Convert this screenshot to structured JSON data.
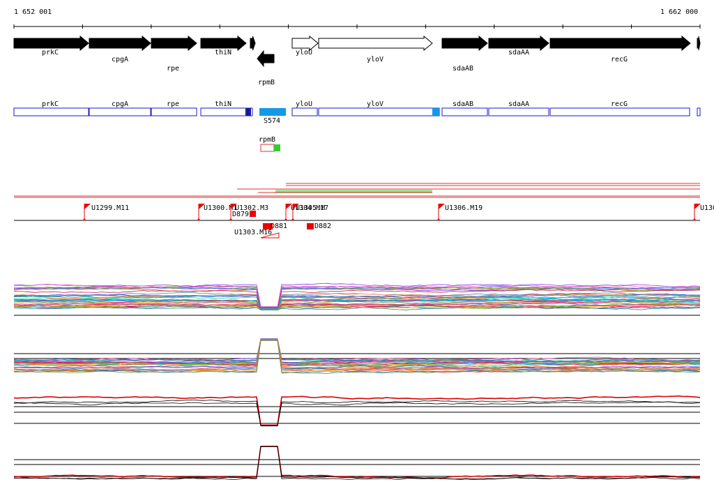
{
  "coords": {
    "start": "1 652 001",
    "end": "1 662 000"
  },
  "genes": [
    {
      "label": "prkC"
    },
    {
      "label": "cpgA"
    },
    {
      "label": "rpe"
    },
    {
      "label": "thiN"
    },
    {
      "label": ""
    },
    {
      "label": "rpmB"
    },
    {
      "label": "yloU"
    },
    {
      "label": "yloV"
    },
    {
      "label": "sdaAB"
    },
    {
      "label": "sdaAA"
    },
    {
      "label": "recG"
    },
    {
      "label": ""
    }
  ],
  "features": [
    {
      "label": "prkC"
    },
    {
      "label": "cpgA"
    },
    {
      "label": "rpe"
    },
    {
      "label": "thiN"
    },
    {
      "label": "S574"
    },
    {
      "label": "yloU"
    },
    {
      "label": "yloV"
    },
    {
      "label": "sdaAB"
    },
    {
      "label": "sdaAA"
    },
    {
      "label": "recG"
    }
  ],
  "rpmb_box": {
    "label": "rpmB"
  },
  "flags": [
    {
      "label": "U1299.M11"
    },
    {
      "label": "U1300.M1"
    },
    {
      "label": "U1302.M3"
    },
    {
      "label": "U1304.M17"
    },
    {
      "label": "U1305.M"
    },
    {
      "label": "U1306.M19"
    },
    {
      "label": "U130"
    }
  ],
  "lower_flags": [
    {
      "label": "D879"
    },
    {
      "label": "U1303.M16"
    },
    {
      "label": "D881"
    },
    {
      "label": "D882"
    }
  ],
  "colors": {
    "gene_arrow": "#000000",
    "feature_outline": "#1a1acc",
    "feature_fill": "#1499e6",
    "transcript_red": "#e03030",
    "transcript_green": "#33cc33",
    "flag": "#ee0000",
    "profile_highlight": "#dd0000"
  },
  "icons": [
    "flag-marker-icon"
  ]
}
